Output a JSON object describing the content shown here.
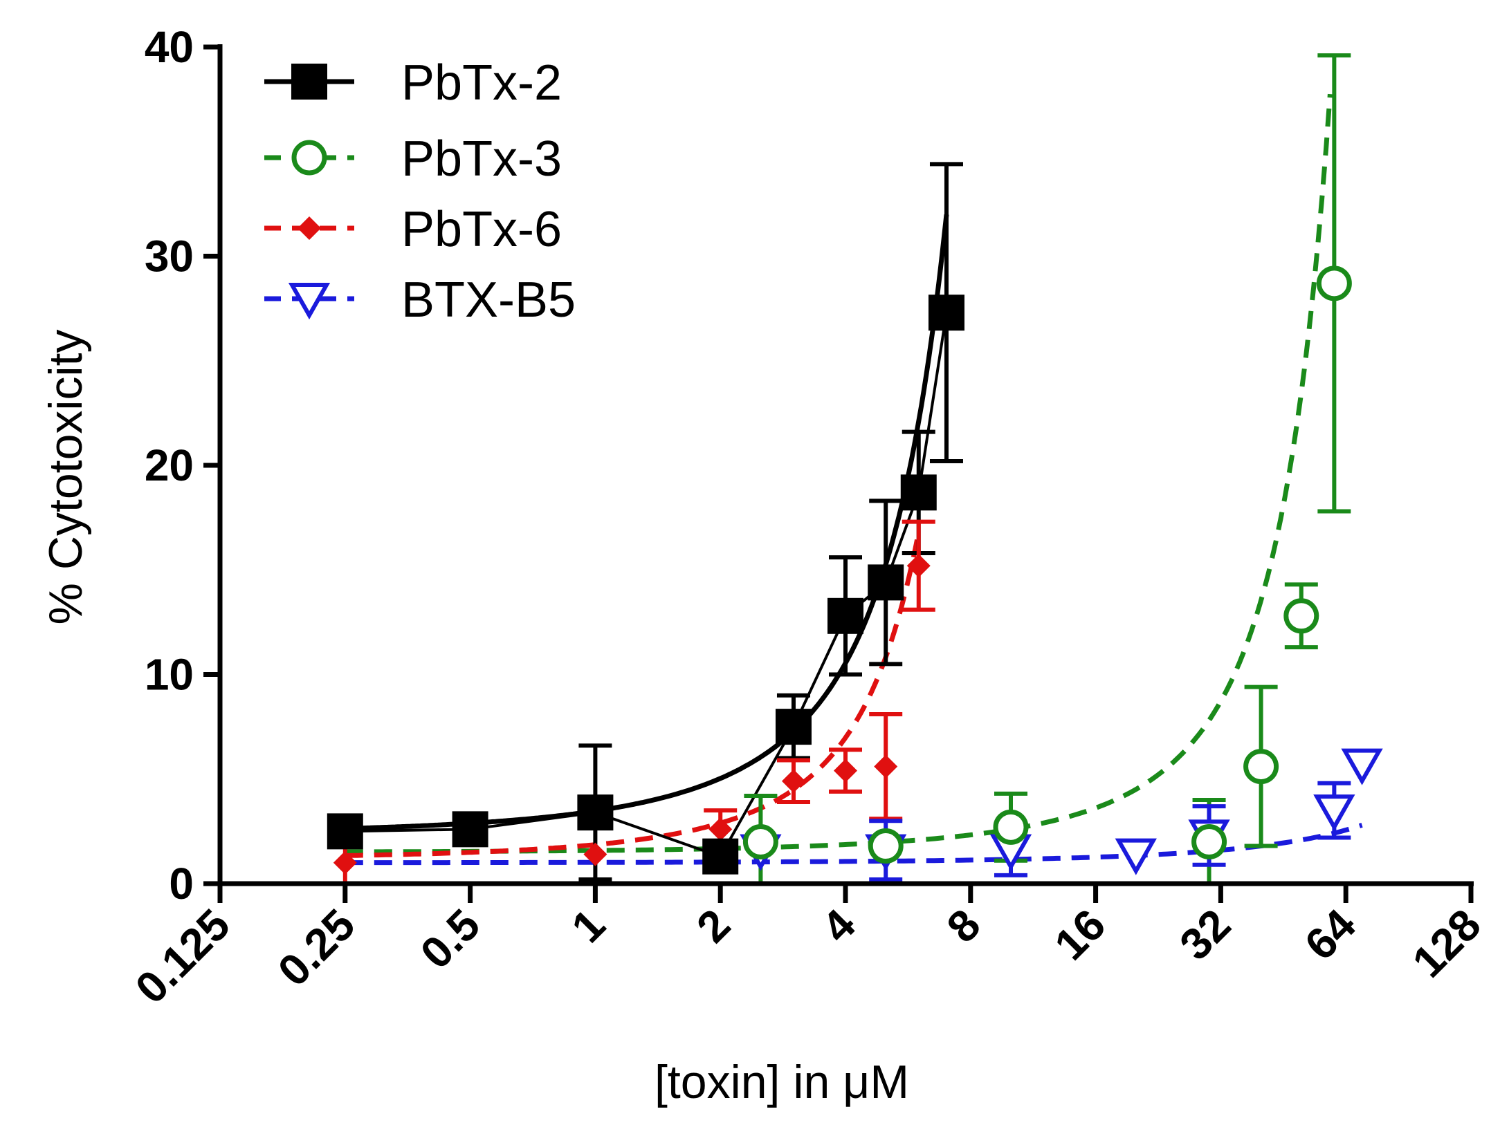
{
  "chart_data": {
    "type": "scatter",
    "title": "",
    "xlabel": "[toxin] in μM",
    "ylabel": "% Cytotoxicity",
    "xscale": "log2",
    "xlim": [
      0.125,
      128
    ],
    "ylim": [
      0,
      40
    ],
    "xticks": [
      "0.125",
      "0.25",
      "0.5",
      "1",
      "2",
      "4",
      "8",
      "16",
      "32",
      "64",
      "128"
    ],
    "yticks": [
      "0",
      "10",
      "20",
      "30",
      "40"
    ],
    "legend_position": "top-left",
    "series": [
      {
        "name": "PbTx-2",
        "color": "#000000",
        "marker": "filled-square",
        "line": "solid",
        "x": [
          0.25,
          0.5,
          1,
          2,
          3,
          4,
          5,
          6,
          7
        ],
        "y": [
          2.5,
          2.6,
          3.4,
          1.3,
          7.5,
          12.8,
          14.4,
          18.7,
          27.3
        ],
        "err": [
          0.0,
          0.0,
          3.2,
          0.0,
          1.5,
          2.8,
          3.9,
          2.9,
          7.1
        ],
        "fit_y0": 2.4,
        "fit_k": 0.37
      },
      {
        "name": "PbTx-3",
        "color": "#1a8a1a",
        "marker": "open-circle",
        "line": "dashed",
        "x": [
          2.5,
          5,
          10,
          30,
          40,
          50,
          60
        ],
        "y": [
          2.0,
          1.8,
          2.7,
          2.0,
          5.6,
          12.8,
          28.7
        ],
        "err": [
          2.2,
          0.0,
          1.6,
          2.0,
          3.8,
          1.5,
          10.9
        ],
        "fit_y0": 1.5,
        "fit_k": 0.055
      },
      {
        "name": "PbTx-6",
        "color": "#e01010",
        "marker": "filled-diamond",
        "line": "dashed",
        "x": [
          0.25,
          1,
          2,
          3,
          4,
          5,
          6
        ],
        "y": [
          1.0,
          1.4,
          2.6,
          4.9,
          5.4,
          5.6,
          15.2
        ],
        "err": [
          1.0,
          0.0,
          0.9,
          1.0,
          1.0,
          2.5,
          2.1
        ],
        "fit_y0": 1.2,
        "fit_k": 0.44
      },
      {
        "name": "BTX-B5",
        "color": "#1a1adc",
        "marker": "open-triangle-down",
        "line": "dashed",
        "x": [
          2.5,
          5,
          10,
          20,
          30,
          60,
          70
        ],
        "y": [
          1.6,
          1.6,
          1.6,
          1.4,
          2.3,
          3.5,
          5.7
        ],
        "err": [
          0.0,
          1.4,
          1.2,
          0.0,
          1.4,
          1.3,
          0.0
        ],
        "fit_y0": 1.0,
        "fit_k": 0.0147
      }
    ]
  }
}
